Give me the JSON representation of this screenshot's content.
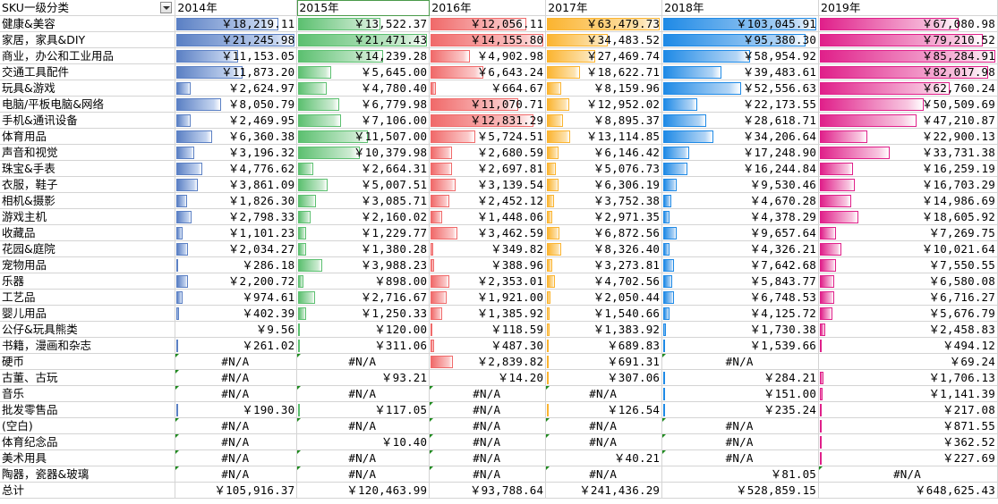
{
  "header": {
    "row_label": "SKU一级分类",
    "years": [
      "2014年",
      "2015年",
      "2016年",
      "2017年",
      "2018年",
      "2019年"
    ]
  },
  "colors": {
    "2014": [
      "#c5d5f0",
      "#5b80c4"
    ],
    "2015": [
      "#cdebd2",
      "#5cc070"
    ],
    "2016": [
      "#fbcaca",
      "#f06a6a"
    ],
    "2017": [
      "#fde3b0",
      "#fbb430"
    ],
    "2018": [
      "#b3d5f5",
      "#1f8ae6"
    ],
    "2019": [
      "#f8c6e0",
      "#e0208a"
    ]
  },
  "rows": [
    {
      "label": "健康&美容",
      "values": [
        "￥18,219.11",
        "￥13,522.37",
        "￥12,056.11",
        "￥63,479.73",
        "￥103,045.91",
        "￥67,080.98"
      ],
      "levels": [
        0.86,
        0.64,
        0.85,
        1.0,
        1.0,
        0.79
      ]
    },
    {
      "label": "家居，家具&DIY",
      "values": [
        "￥21,245.98",
        "￥21,471.43",
        "￥14,155.80",
        "￥34,483.52",
        "￥95,380.30",
        "￥79,210.52"
      ],
      "levels": [
        1.0,
        1.0,
        1.0,
        0.54,
        0.93,
        0.93
      ]
    },
    {
      "label": "商业，办公和工业用品",
      "values": [
        "￥11,153.05",
        "￥14,239.28",
        "￥4,902.98",
        "￥27,469.74",
        "￥58,954.92",
        "￥85,284.91"
      ],
      "levels": [
        0.52,
        0.66,
        0.35,
        0.43,
        0.57,
        1.0
      ]
    },
    {
      "label": "交通工具配件",
      "values": [
        "￥11,873.20",
        "￥5,645.00",
        "￥6,643.24",
        "￥18,622.71",
        "￥39,483.61",
        "￥82,017.98"
      ],
      "levels": [
        0.56,
        0.26,
        0.47,
        0.29,
        0.38,
        0.96
      ]
    },
    {
      "label": "玩具&游戏",
      "values": [
        "￥2,624.97",
        "￥4,780.40",
        "￥664.67",
        "￥8,159.96",
        "￥52,556.63",
        "￥62,760.24"
      ],
      "levels": [
        0.12,
        0.22,
        0.05,
        0.13,
        0.51,
        0.74
      ]
    },
    {
      "label": "电脑/平板电脑&网络",
      "values": [
        "￥8,050.79",
        "￥6,779.98",
        "￥11,070.71",
        "￥12,952.02",
        "￥22,173.55",
        "￥50,509.69"
      ],
      "levels": [
        0.38,
        0.32,
        0.78,
        0.2,
        0.22,
        0.59
      ]
    },
    {
      "label": "手机&通讯设备",
      "values": [
        "￥2,469.95",
        "￥7,106.00",
        "￥12,831.29",
        "￥8,895.37",
        "￥28,618.71",
        "￥47,210.87"
      ],
      "levels": [
        0.12,
        0.33,
        0.91,
        0.14,
        0.28,
        0.55
      ]
    },
    {
      "label": "体育用品",
      "values": [
        "￥6,360.38",
        "￥11,507.00",
        "￥5,724.51",
        "￥13,114.85",
        "￥34,206.64",
        "￥22,900.13"
      ],
      "levels": [
        0.3,
        0.54,
        0.4,
        0.21,
        0.33,
        0.27
      ]
    },
    {
      "label": "声音和视觉",
      "values": [
        "￥3,196.32",
        "￥10,379.98",
        "￥2,680.59",
        "￥6,146.42",
        "￥17,248.90",
        "￥33,731.38"
      ],
      "levels": [
        0.15,
        0.48,
        0.19,
        0.1,
        0.17,
        0.4
      ]
    },
    {
      "label": "珠宝&手表",
      "values": [
        "￥4,776.62",
        "￥2,664.31",
        "￥2,697.81",
        "￥5,076.73",
        "￥16,244.84",
        "￥16,259.19"
      ],
      "levels": [
        0.22,
        0.12,
        0.19,
        0.08,
        0.16,
        0.19
      ]
    },
    {
      "label": "衣服，鞋子",
      "values": [
        "￥3,861.09",
        "￥5,007.51",
        "￥3,139.54",
        "￥6,306.19",
        "￥9,530.46",
        "￥16,703.29"
      ],
      "levels": [
        0.18,
        0.23,
        0.22,
        0.1,
        0.09,
        0.2
      ]
    },
    {
      "label": "相机&摄影",
      "values": [
        "￥1,826.30",
        "￥3,085.71",
        "￥2,452.12",
        "￥3,752.38",
        "￥4,670.28",
        "￥14,986.69"
      ],
      "levels": [
        0.09,
        0.14,
        0.17,
        0.06,
        0.05,
        0.18
      ]
    },
    {
      "label": "游戏主机",
      "values": [
        "￥2,798.33",
        "￥2,160.02",
        "￥1,448.06",
        "￥2,971.35",
        "￥4,378.29",
        "￥18,605.92"
      ],
      "levels": [
        0.13,
        0.1,
        0.1,
        0.05,
        0.04,
        0.22
      ]
    },
    {
      "label": "收藏品",
      "values": [
        "￥1,101.23",
        "￥1,229.77",
        "￥3,462.59",
        "￥6,872.56",
        "￥9,657.64",
        "￥7,269.75"
      ],
      "levels": [
        0.05,
        0.06,
        0.24,
        0.11,
        0.09,
        0.09
      ]
    },
    {
      "label": "花园&庭院",
      "values": [
        "￥2,034.27",
        "￥1,380.28",
        "￥349.82",
        "￥8,326.40",
        "￥4,326.21",
        "￥10,021.64"
      ],
      "levels": [
        0.1,
        0.06,
        0.02,
        0.13,
        0.04,
        0.12
      ]
    },
    {
      "label": "宠物用品",
      "values": [
        "￥286.18",
        "￥3,988.23",
        "￥388.96",
        "￥3,273.81",
        "￥7,642.68",
        "￥7,550.55"
      ],
      "levels": [
        0.01,
        0.19,
        0.03,
        0.05,
        0.07,
        0.09
      ]
    },
    {
      "label": "乐器",
      "values": [
        "￥2,200.72",
        "￥898.00",
        "￥2,353.01",
        "￥4,702.56",
        "￥5,843.77",
        "￥6,580.08"
      ],
      "levels": [
        0.1,
        0.04,
        0.17,
        0.07,
        0.06,
        0.08
      ]
    },
    {
      "label": "工艺品",
      "values": [
        "￥974.61",
        "￥2,716.67",
        "￥1,921.00",
        "￥2,050.44",
        "￥6,748.53",
        "￥6,716.27"
      ],
      "levels": [
        0.05,
        0.13,
        0.14,
        0.03,
        0.07,
        0.08
      ]
    },
    {
      "label": "婴儿用品",
      "values": [
        "￥402.39",
        "￥1,250.33",
        "￥1,385.92",
        "￥1,540.66",
        "￥4,125.72",
        "￥5,676.79"
      ],
      "levels": [
        0.02,
        0.06,
        0.1,
        0.02,
        0.04,
        0.07
      ]
    },
    {
      "label": "公仔&玩具熊类",
      "values": [
        "￥9.56",
        "￥120.00",
        "￥118.59",
        "￥1,383.92",
        "￥1,730.38",
        "￥2,458.83"
      ],
      "levels": [
        0,
        0.01,
        0.01,
        0.02,
        0.02,
        0.03
      ]
    },
    {
      "label": "书籍，漫画和杂志",
      "values": [
        "￥261.02",
        "￥311.06",
        "￥487.30",
        "￥689.83",
        "￥1,539.66",
        "￥494.12"
      ],
      "levels": [
        0.01,
        0.01,
        0.03,
        0.01,
        0.01,
        0.01
      ]
    },
    {
      "label": "硬币",
      "values": [
        "#N/A",
        "#N/A",
        "￥2,839.82",
        "￥691.31",
        "#N/A",
        "￥69.24"
      ],
      "levels": [
        0,
        0,
        0.2,
        0.01,
        0,
        0
      ]
    },
    {
      "label": "古董、古玩",
      "values": [
        "#N/A",
        "￥93.21",
        "￥14.20",
        "￥307.06",
        "￥284.21",
        "￥1,706.13"
      ],
      "levels": [
        0,
        0,
        0,
        0.005,
        0.003,
        0.02
      ]
    },
    {
      "label": "音乐",
      "values": [
        "#N/A",
        "#N/A",
        "#N/A",
        "#N/A",
        "￥151.00",
        "￥1,141.39"
      ],
      "levels": [
        0,
        0,
        0,
        0,
        0.001,
        0.013
      ]
    },
    {
      "label": "批发零售品",
      "values": [
        "￥190.30",
        "￥117.05",
        "#N/A",
        "￥126.54",
        "￥235.24",
        "￥217.08"
      ],
      "levels": [
        0.01,
        0.005,
        0,
        0.002,
        0.002,
        0.003
      ]
    },
    {
      "label": "(空白)",
      "values": [
        "#N/A",
        "#N/A",
        "#N/A",
        "#N/A",
        "#N/A",
        "￥871.55"
      ],
      "levels": [
        0,
        0,
        0,
        0,
        0,
        0.01
      ]
    },
    {
      "label": "体育纪念品",
      "values": [
        "#N/A",
        "￥10.40",
        "#N/A",
        "#N/A",
        "#N/A",
        "￥362.52"
      ],
      "levels": [
        0,
        0,
        0,
        0,
        0,
        0.004
      ]
    },
    {
      "label": "美术用具",
      "values": [
        "#N/A",
        "#N/A",
        "#N/A",
        "￥40.21",
        "#N/A",
        "￥227.69"
      ],
      "levels": [
        0,
        0,
        0,
        0,
        0,
        0.003
      ]
    },
    {
      "label": "陶器，瓷器&玻璃",
      "values": [
        "#N/A",
        "#N/A",
        "#N/A",
        "#N/A",
        "￥81.05",
        "#N/A"
      ],
      "levels": [
        0,
        0,
        0,
        0,
        0,
        0
      ]
    }
  ],
  "total": {
    "label": "总计",
    "values": [
      "￥105,916.37",
      "￥120,463.99",
      "￥93,788.64",
      "￥241,436.29",
      "￥528,859.15",
      "￥648,625.43"
    ]
  }
}
